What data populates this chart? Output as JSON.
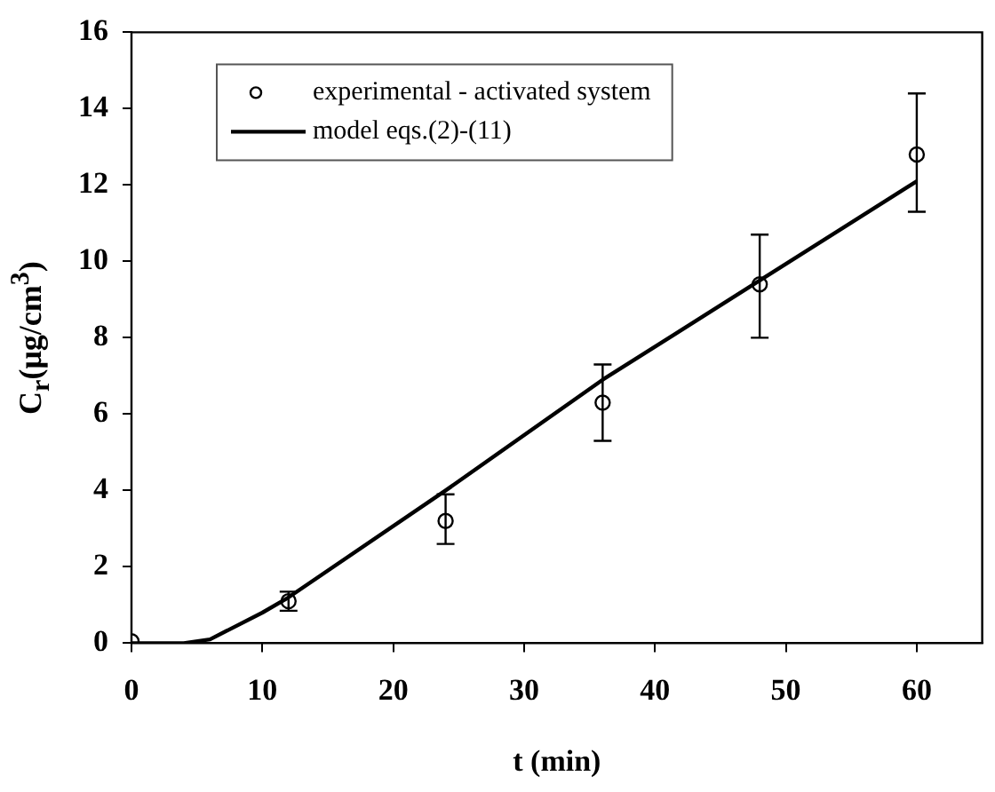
{
  "chart_data": {
    "type": "scatter",
    "xlabel": "t (min)",
    "ylabel": "C$_{r}$(μg/cm$^{3}$)",
    "xlim": [
      0,
      65
    ],
    "xticks": [
      0,
      10,
      20,
      30,
      40,
      50,
      60
    ],
    "ylim": [
      0,
      16
    ],
    "yticks": [
      0,
      2,
      4,
      6,
      8,
      10,
      12,
      14,
      16
    ],
    "grid": false,
    "legend": "top left",
    "series": [
      {
        "name": "experimental - activated system",
        "marker": "circle",
        "color": "#000000",
        "x": [
          0,
          12,
          24,
          36,
          48,
          60
        ],
        "values": [
          0.05,
          1.1,
          3.2,
          6.3,
          9.4,
          12.8
        ],
        "errors": [
          null,
          [
            0.85,
            1.35
          ],
          [
            2.6,
            3.9
          ],
          [
            5.3,
            7.3
          ],
          [
            8.0,
            10.7
          ],
          [
            11.3,
            14.4
          ]
        ]
      },
      {
        "name": "model eqs.(2)-(11)",
        "type": "line",
        "marker": "none",
        "line_style": "solid",
        "color": "#000000",
        "x": [
          0,
          2,
          4,
          6,
          10,
          12,
          24,
          36,
          48,
          60
        ],
        "values": [
          0,
          0,
          0,
          0.1,
          0.8,
          1.2,
          4.0,
          6.9,
          9.5,
          12.1
        ]
      }
    ]
  }
}
